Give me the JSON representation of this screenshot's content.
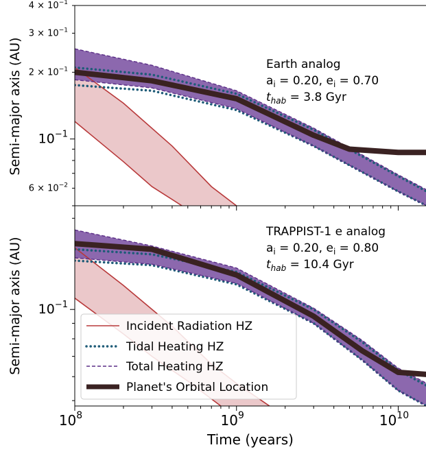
{
  "chart_data": [
    {
      "type": "line",
      "panel": "top",
      "xscale": "log",
      "yscale": "log",
      "xlim": [
        100000000,
        15000000000
      ],
      "ylim": [
        0.05,
        0.4
      ],
      "ylabel": "Semi-major axis (AU)",
      "y_ticks": [
        {
          "value": 0.4,
          "base": "4 × 10",
          "exp": "−1"
        },
        {
          "value": 0.3,
          "base": "3 × 10",
          "exp": "−1"
        },
        {
          "value": 0.2,
          "base": "2 × 10",
          "exp": "−1"
        },
        {
          "value": 0.1,
          "base": "10",
          "exp": "−1",
          "major": true
        },
        {
          "value": 0.06,
          "base": "6 × 10",
          "exp": "−2"
        }
      ],
      "annotation": {
        "line1": "Earth analog",
        "line2": "a",
        "line2_sub": "i",
        "line2_rest": " = 0.20, e",
        "line2_sub2": "i",
        "line2_end": " = 0.70",
        "line3_var": "t",
        "line3_sub": "hab",
        "line3_rest": " =  3.8 Gyr"
      },
      "series": {
        "incident_upper": {
          "x": [
            100000000,
            200000000,
            400000000,
            700000000,
            1000000000
          ],
          "y": [
            0.21,
            0.145,
            0.093,
            0.061,
            0.05
          ]
        },
        "incident_lower": {
          "x": [
            100000000,
            200000000,
            300000000,
            460000000
          ],
          "y": [
            0.12,
            0.079,
            0.061,
            0.05
          ]
        },
        "tidal_upper": {
          "x": [
            100000000,
            300000000,
            1000000000,
            3000000000,
            10000000000,
            15000000000
          ],
          "y": [
            0.21,
            0.195,
            0.16,
            0.11,
            0.068,
            0.058
          ]
        },
        "tidal_lower": {
          "x": [
            100000000,
            300000000,
            1000000000,
            3000000000,
            10000000000,
            15000000000
          ],
          "y": [
            0.175,
            0.165,
            0.135,
            0.093,
            0.058,
            0.05
          ]
        },
        "total_upper": {
          "x": [
            100000000,
            300000000,
            1000000000,
            3000000000,
            10000000000,
            15000000000
          ],
          "y": [
            0.255,
            0.215,
            0.165,
            0.112,
            0.069,
            0.059
          ]
        },
        "total_lower": {
          "x": [
            100000000,
            300000000,
            1000000000,
            3000000000,
            10000000000,
            15000000000
          ],
          "y": [
            0.185,
            0.17,
            0.137,
            0.093,
            0.058,
            0.05
          ]
        },
        "planet": {
          "x": [
            100000000,
            300000000,
            1000000000,
            3000000000,
            5000000000,
            10000000000,
            15000000000
          ],
          "y": [
            0.2,
            0.183,
            0.152,
            0.104,
            0.09,
            0.087,
            0.087
          ]
        }
      }
    },
    {
      "type": "line",
      "panel": "bottom",
      "xscale": "log",
      "yscale": "log",
      "xlim": [
        100000000,
        15000000000
      ],
      "ylim": [
        0.048,
        0.22
      ],
      "xlabel": "Time (years)",
      "ylabel": "Semi-major axis (AU)",
      "x_ticks": [
        {
          "value": 100000000,
          "base": "10",
          "exp": "8"
        },
        {
          "value": 1000000000,
          "base": "10",
          "exp": "9"
        },
        {
          "value": 10000000000,
          "base": "10",
          "exp": "10"
        }
      ],
      "y_ticks": [
        {
          "value": 0.1,
          "base": "10",
          "exp": "−1",
          "major": true
        }
      ],
      "annotation": {
        "line1": "TRAPPIST-1 e analog",
        "line2": "a",
        "line2_sub": "i",
        "line2_rest": " = 0.20, e",
        "line2_sub2": "i",
        "line2_end": " = 0.80",
        "line3_var": "t",
        "line3_sub": "hab",
        "line3_rest": " =  10.4 Gyr"
      },
      "legend": {
        "placement": "lower-left",
        "entries": [
          {
            "label": "Incident Radiation HZ",
            "color": "#b8393a",
            "style": "solid"
          },
          {
            "label": "Tidal Heating HZ",
            "color": "#1f5c78",
            "style": "dotted"
          },
          {
            "label": "Total Heating HZ",
            "color": "#5a2d86",
            "style": "dashed"
          },
          {
            "label": "Planet's Orbital Location",
            "color": "#3a2222",
            "style": "thick"
          }
        ]
      },
      "series": {
        "incident_upper": {
          "x": [
            100000000,
            200000000,
            400000000,
            700000000,
            1000000000,
            1600000000
          ],
          "y": [
            0.16,
            0.12,
            0.088,
            0.066,
            0.057,
            0.048
          ]
        },
        "incident_lower": {
          "x": [
            100000000,
            200000000,
            300000000,
            500000000,
            800000000
          ],
          "y": [
            0.109,
            0.083,
            0.07,
            0.058,
            0.048
          ]
        },
        "tidal_upper": {
          "x": [
            100000000,
            300000000,
            1000000000,
            3000000000,
            6000000000,
            10000000000,
            15000000000
          ],
          "y": [
            0.158,
            0.152,
            0.133,
            0.1,
            0.078,
            0.063,
            0.056
          ]
        },
        "tidal_lower": {
          "x": [
            100000000,
            300000000,
            1000000000,
            3000000000,
            6000000000,
            10000000000,
            15000000000
          ],
          "y": [
            0.145,
            0.14,
            0.121,
            0.09,
            0.068,
            0.054,
            0.048
          ]
        },
        "total_upper": {
          "x": [
            100000000,
            300000000,
            1000000000,
            3000000000,
            6000000000,
            10000000000,
            15000000000
          ],
          "y": [
            0.183,
            0.162,
            0.137,
            0.101,
            0.079,
            0.064,
            0.057
          ]
        },
        "total_lower": {
          "x": [
            100000000,
            300000000,
            1000000000,
            3000000000,
            6000000000,
            10000000000,
            15000000000
          ],
          "y": [
            0.148,
            0.141,
            0.122,
            0.09,
            0.068,
            0.054,
            0.048
          ]
        },
        "planet": {
          "x": [
            100000000,
            300000000,
            1000000000,
            3000000000,
            6000000000,
            10000000000,
            15000000000
          ],
          "y": [
            0.165,
            0.158,
            0.13,
            0.095,
            0.073,
            0.062,
            0.061
          ]
        }
      }
    }
  ],
  "colors": {
    "incident_line": "#b8393a",
    "incident_fill": "#dda4a6",
    "tidal": "#1f5c78",
    "total_line": "#5a2d86",
    "total_fill": "#8058a5",
    "planet": "#3a2222"
  }
}
